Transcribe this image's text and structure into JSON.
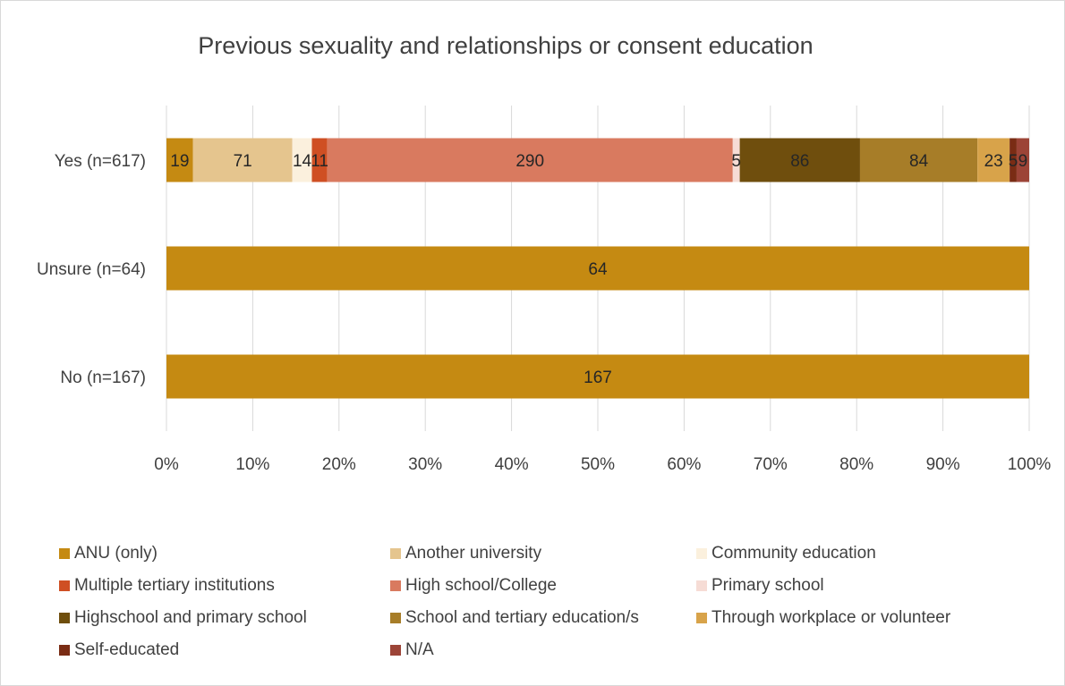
{
  "chart_data": {
    "type": "bar",
    "orientation": "horizontal",
    "stacked": "percent",
    "title": "Previous sexuality and relationships or consent education",
    "categories": [
      "Yes (n=617)",
      "Unsure (n=64)",
      "No (n=167)"
    ],
    "xlim": [
      0,
      100
    ],
    "x_ticks": [
      "0%",
      "10%",
      "20%",
      "30%",
      "40%",
      "50%",
      "60%",
      "70%",
      "80%",
      "90%",
      "100%"
    ],
    "grid": true,
    "legend_position": "bottom",
    "series": [
      {
        "name": "ANU (only)",
        "color": "#c58a12",
        "values": [
          19,
          64,
          167
        ]
      },
      {
        "name": "Another university",
        "color": "#e5c58e",
        "values": [
          71,
          0,
          0
        ]
      },
      {
        "name": "Community education",
        "color": "#fbf0dd",
        "values": [
          14,
          0,
          0
        ]
      },
      {
        "name": "Multiple tertiary institutions",
        "color": "#cf4f23",
        "values": [
          11,
          0,
          0
        ]
      },
      {
        "name": "High school/College",
        "color": "#d97a5f",
        "values": [
          290,
          0,
          0
        ]
      },
      {
        "name": "Primary school",
        "color": "#f6dcd5",
        "values": [
          5,
          0,
          0
        ]
      },
      {
        "name": "Highschool and primary school",
        "color": "#6f4e0d",
        "values": [
          86,
          0,
          0
        ]
      },
      {
        "name": "School and tertiary education/s",
        "color": "#a77d28",
        "values": [
          84,
          0,
          0
        ]
      },
      {
        "name": "Through workplace or volunteer",
        "color": "#d8a34a",
        "values": [
          23,
          0,
          0
        ]
      },
      {
        "name": "Self-educated",
        "color": "#7a2c14",
        "values": [
          5,
          0,
          0
        ]
      },
      {
        "name": "N/A",
        "color": "#9c4437",
        "values": [
          9,
          0,
          0
        ]
      }
    ]
  }
}
